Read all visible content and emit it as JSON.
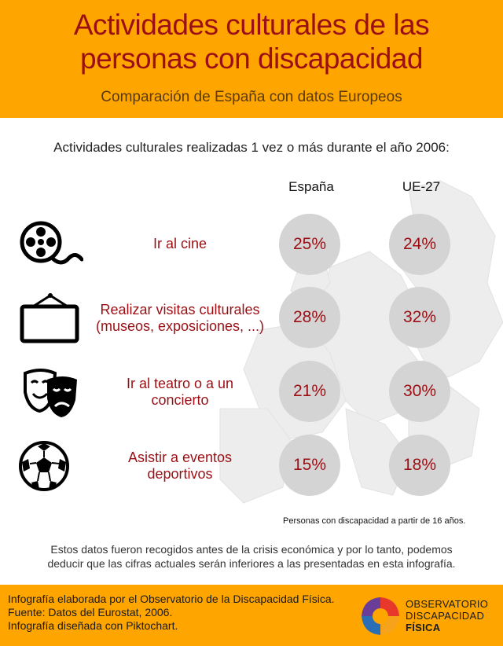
{
  "header": {
    "title_line1": "Actividades culturales de las",
    "title_line2": "personas con discapacidad",
    "subtitle": "Comparación de España con datos Europeos"
  },
  "chart_data": {
    "type": "table",
    "title": "Actividades culturales realizadas 1 vez o más durante el año 2006:",
    "columns": [
      "España",
      "UE-27"
    ],
    "rows": [
      {
        "label": [
          "Ir al cine"
        ],
        "icon": "film-reel-icon",
        "values": [
          "25%",
          "24%"
        ]
      },
      {
        "label": [
          "Realizar visitas culturales",
          "(museos, exposiciones, ...)"
        ],
        "icon": "picture-frame-icon",
        "values": [
          "28%",
          "32%"
        ]
      },
      {
        "label": [
          "Ir al teatro o a un",
          "concierto"
        ],
        "icon": "theater-masks-icon",
        "values": [
          "21%",
          "30%"
        ]
      },
      {
        "label": [
          "Asistir a eventos",
          "deportivos"
        ],
        "icon": "soccer-ball-icon",
        "values": [
          "15%",
          "18%"
        ]
      }
    ],
    "values_numeric": {
      "España": [
        25,
        28,
        21,
        15
      ],
      "UE-27": [
        24,
        32,
        30,
        18
      ]
    },
    "note": "Personas con discapacidad a partir de 16 años."
  },
  "comment": {
    "line1": "Estos datos fueron recogidos antes de la crisis económica y por lo tanto, podemos",
    "line2": "deducir que las cifras actuales serán inferiores a las presentadas en esta infografía."
  },
  "footer": {
    "credits": [
      "Infografía elaborada por el Observatorio de la Discapacidad Física.",
      "Fuente: Datos del Eurostat, 2006.",
      "Infografía diseñada con Piktochart."
    ],
    "logo_line1": "OBSERVATORIO",
    "logo_line2": "DISCAPACIDAD",
    "logo_line3": "FÍSICA"
  },
  "colors": {
    "orange": "#ffa500",
    "dark_red": "#9b0f14",
    "circle_gray": "#d4d4d4"
  }
}
